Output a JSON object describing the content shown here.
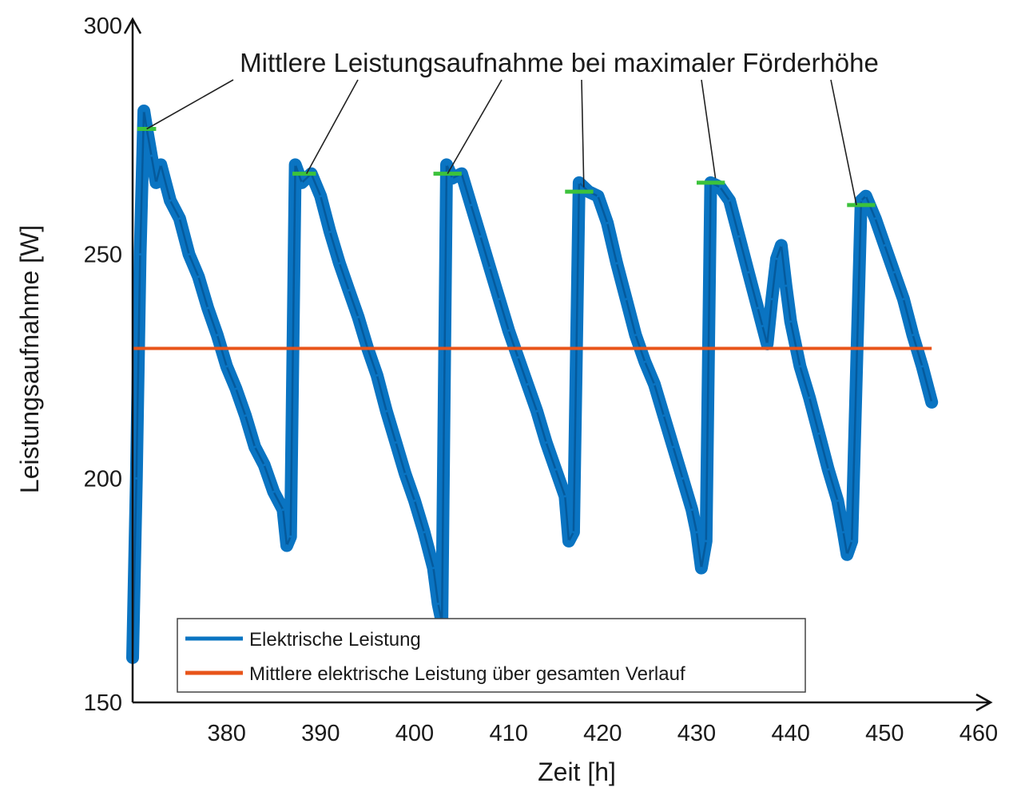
{
  "chart_data": {
    "type": "line",
    "xlabel": "Zeit [h]",
    "ylabel": "Leistungsaufnahme [W]",
    "xlim": [
      370,
      460
    ],
    "ylim": [
      150,
      300
    ],
    "xticks": [
      380,
      390,
      400,
      410,
      420,
      430,
      440,
      450,
      460
    ],
    "yticks": [
      150,
      200,
      250,
      300
    ],
    "grid": false,
    "legend_position": "bottom-left",
    "annotation": {
      "text": "Mittlere Leistungsaufnahme bei maximaler Förderhöhe",
      "targets": [
        {
          "x": 371.5,
          "y": 278
        },
        {
          "x": 388.5,
          "y": 268
        },
        {
          "x": 403.5,
          "y": 268
        },
        {
          "x": 418.0,
          "y": 265
        },
        {
          "x": 432.0,
          "y": 267
        },
        {
          "x": 447.0,
          "y": 261
        }
      ]
    },
    "plateaus": [
      {
        "x_start": 370.5,
        "x_end": 372.5,
        "y": 278
      },
      {
        "x_start": 387.0,
        "x_end": 389.5,
        "y": 268
      },
      {
        "x_start": 402.0,
        "x_end": 405.0,
        "y": 268
      },
      {
        "x_start": 416.0,
        "x_end": 419.0,
        "y": 264
      },
      {
        "x_start": 430.0,
        "x_end": 433.0,
        "y": 266
      },
      {
        "x_start": 446.0,
        "x_end": 449.0,
        "y": 261
      }
    ],
    "series": [
      {
        "name": "Elektrische Leistung",
        "color": "#0a74c2",
        "x": [
          370.0,
          370.4,
          370.8,
          371.2,
          371.5,
          372.0,
          372.5,
          373.0,
          374.0,
          375.0,
          376.0,
          377.0,
          378.0,
          379.0,
          380.0,
          381.0,
          382.0,
          383.0,
          384.0,
          385.0,
          386.0,
          386.4,
          386.8,
          387.3,
          388.0,
          389.0,
          390.0,
          391.0,
          392.0,
          393.0,
          394.0,
          395.0,
          396.0,
          397.0,
          398.0,
          399.0,
          400.0,
          401.0,
          402.0,
          402.5,
          402.9,
          403.4,
          404.0,
          405.0,
          406.0,
          407.0,
          408.0,
          409.0,
          410.0,
          411.0,
          412.0,
          413.0,
          414.0,
          415.0,
          416.0,
          416.4,
          416.9,
          417.5,
          418.5,
          419.5,
          420.5,
          421.5,
          422.5,
          423.5,
          424.5,
          425.5,
          426.5,
          427.5,
          428.5,
          429.5,
          430.0,
          430.5,
          431.0,
          431.5,
          432.5,
          433.5,
          434.5,
          435.5,
          436.5,
          437.0,
          437.5,
          438.0,
          438.5,
          439.0,
          439.5,
          440.0,
          441.0,
          442.0,
          443.0,
          444.0,
          445.0,
          445.6,
          446.0,
          446.5,
          447.5,
          448.0,
          449.0,
          450.0,
          451.0,
          452.0,
          453.0,
          454.0,
          455.0
        ],
        "y": [
          160,
          200,
          250,
          282,
          278,
          272,
          266,
          270,
          262,
          258,
          250,
          245,
          238,
          232,
          225,
          220,
          214,
          207,
          203,
          197,
          193,
          185,
          187,
          270,
          266,
          268,
          263,
          255,
          248,
          242,
          236,
          229,
          223,
          215,
          208,
          201,
          195,
          188,
          180,
          172,
          168,
          270,
          267,
          268,
          261,
          254,
          247,
          240,
          233,
          227,
          221,
          215,
          208,
          202,
          196,
          186,
          188,
          266,
          264,
          263,
          257,
          248,
          240,
          232,
          226,
          221,
          214,
          207,
          200,
          193,
          188,
          180,
          186,
          266,
          265,
          262,
          254,
          246,
          238,
          234,
          230,
          240,
          249,
          252,
          243,
          235,
          225,
          218,
          210,
          202,
          195,
          188,
          183,
          186,
          262,
          263,
          258,
          252,
          246,
          240,
          232,
          225,
          217
        ]
      },
      {
        "name": "Mittlere elektrische Leistung über gesamten Verlauf",
        "color": "#e8541a",
        "x": [
          370.0,
          455.0
        ],
        "y": [
          229,
          229
        ]
      }
    ]
  }
}
